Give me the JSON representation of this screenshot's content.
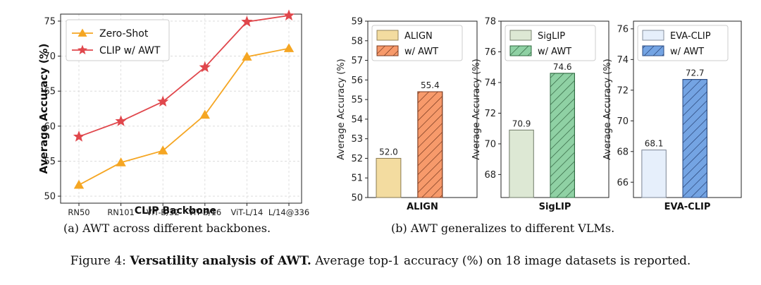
{
  "chart_data": [
    {
      "type": "line",
      "xlabel": "CLIP Backbone",
      "ylabel": "Average Accuracy (%)",
      "categories": [
        "RN50",
        "RN101",
        "ViT-B/32",
        "ViT-B/16",
        "ViT-L/14",
        "L/14@336"
      ],
      "ylim": [
        49,
        76
      ],
      "yticks": [
        50,
        55,
        60,
        65,
        70,
        75
      ],
      "grid": true,
      "legend": "top-left",
      "series": [
        {
          "name": "Zero-Shot",
          "color": "#f5a623",
          "marker": "triangle",
          "values": [
            51.6,
            54.8,
            56.5,
            61.6,
            69.9,
            71.1
          ]
        },
        {
          "name": "CLIP w/ AWT",
          "color": "#e0474c",
          "marker": "star",
          "values": [
            58.5,
            60.7,
            63.5,
            68.4,
            74.9,
            75.8
          ]
        }
      ]
    },
    {
      "type": "bar",
      "xlabel": "ALIGN",
      "ylabel": "Average Accuracy (%)",
      "ylim": [
        50,
        59
      ],
      "yticks": [
        50,
        51,
        52,
        53,
        54,
        55,
        56,
        57,
        58,
        59
      ],
      "legend": "top-left",
      "series": [
        {
          "name": "ALIGN",
          "value": 52.0,
          "label": "52.0",
          "color": "#f3dca0",
          "edge": "#8a7a50",
          "hatch": false
        },
        {
          "name": "w/ AWT",
          "value": 55.4,
          "label": "55.4",
          "color": "#f79a6b",
          "edge": "#7a3a20",
          "hatch": true
        }
      ]
    },
    {
      "type": "bar",
      "xlabel": "SigLIP",
      "ylabel": "Average Accuracy (%)",
      "ylim": [
        66.5,
        78
      ],
      "yticks": [
        68,
        70,
        72,
        74,
        76,
        78
      ],
      "legend": "top-left",
      "series": [
        {
          "name": "SigLIP",
          "value": 70.9,
          "label": "70.9",
          "color": "#dde8d4",
          "edge": "#6f7a68",
          "hatch": false
        },
        {
          "name": "w/ AWT",
          "value": 74.6,
          "label": "74.6",
          "color": "#8fd1a4",
          "edge": "#2f6a40",
          "hatch": true
        }
      ]
    },
    {
      "type": "bar",
      "xlabel": "EVA-CLIP",
      "ylabel": "Average Accuracy (%)",
      "ylim": [
        65,
        76.5
      ],
      "yticks": [
        66,
        68,
        70,
        72,
        74,
        76
      ],
      "legend": "top-left",
      "series": [
        {
          "name": "EVA-CLIP",
          "value": 68.1,
          "label": "68.1",
          "color": "#e6effb",
          "edge": "#7a8494",
          "hatch": false
        },
        {
          "name": "w/ AWT",
          "value": 72.7,
          "label": "72.7",
          "color": "#74a4e3",
          "edge": "#2a4a80",
          "hatch": true
        }
      ]
    }
  ],
  "captions": {
    "a": "(a) AWT across different backbones.",
    "b": "(b) AWT generalizes to different VLMs.",
    "figure_label": "Figure 4:",
    "figure_bold": "Versatility analysis of AWT.",
    "figure_rest": "Average top-1 accuracy (%) on 18 image datasets is reported."
  }
}
